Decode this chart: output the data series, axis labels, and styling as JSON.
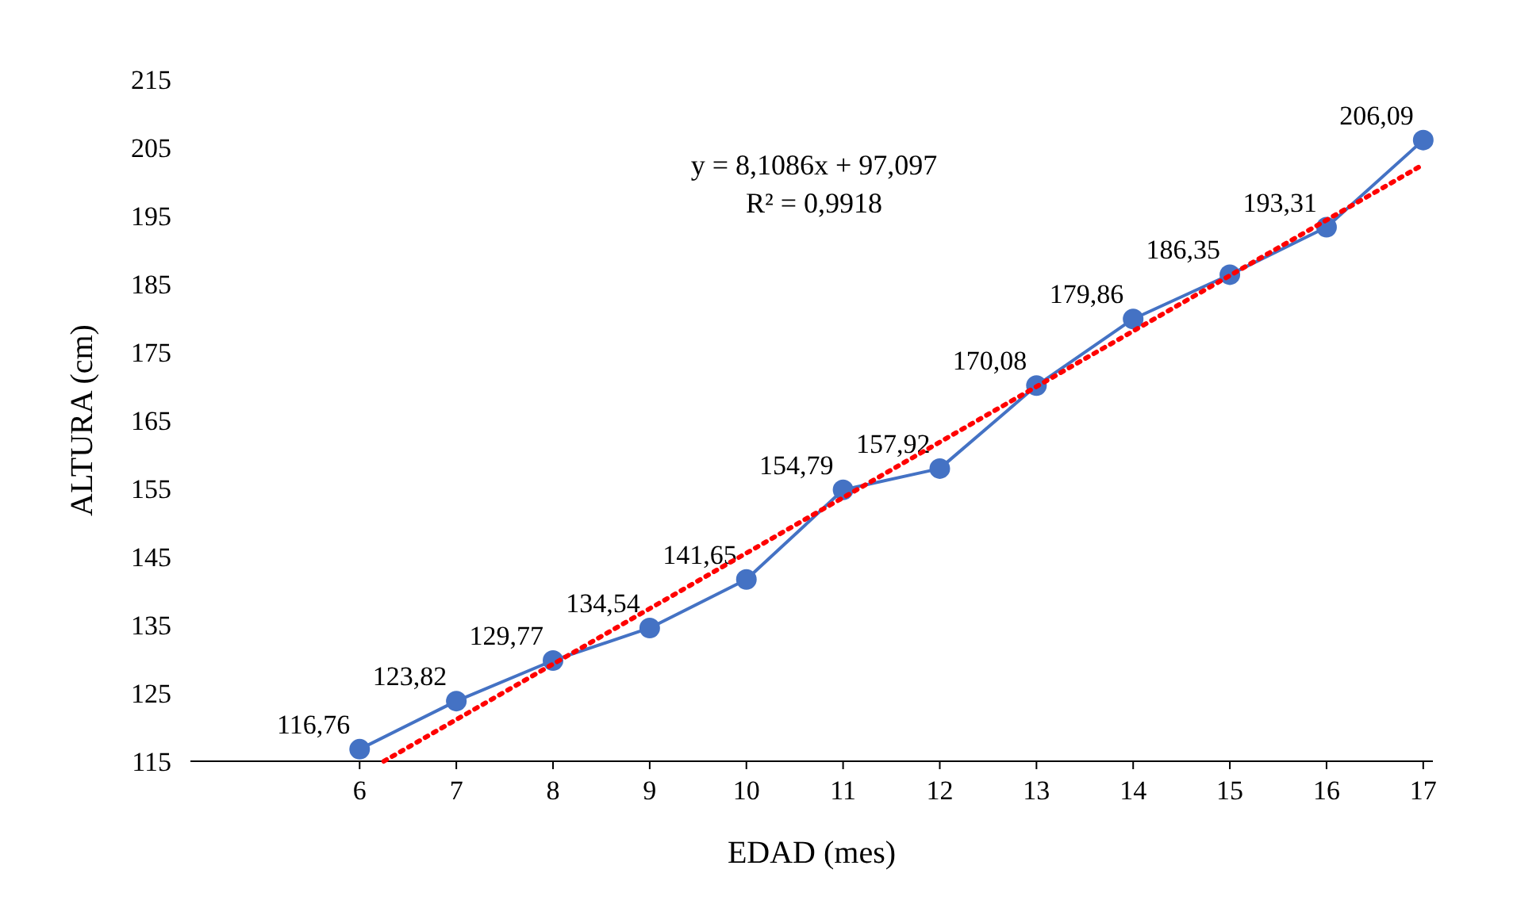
{
  "chart_data": {
    "type": "line",
    "xlabel": "EDAD (mes)",
    "ylabel": "ALTURA  (cm)",
    "x": [
      6,
      7,
      8,
      9,
      10,
      11,
      12,
      13,
      14,
      15,
      16,
      17
    ],
    "xlim": [
      4.25,
      17.1
    ],
    "xticks": [
      6,
      7,
      8,
      9,
      10,
      11,
      12,
      13,
      14,
      15,
      16,
      17
    ],
    "ylim": [
      115,
      215
    ],
    "yticks": [
      115,
      125,
      135,
      145,
      155,
      165,
      175,
      185,
      195,
      205,
      215
    ],
    "grid": false,
    "series": [
      {
        "color": "#4472c4",
        "marker": "circle",
        "line_style": "solid",
        "values": [
          116.76,
          123.82,
          129.77,
          134.54,
          141.65,
          154.79,
          157.92,
          170.08,
          179.86,
          186.35,
          193.31,
          206.09
        ],
        "value_labels": [
          "116,76",
          "123,82",
          "129,77",
          "134,54",
          "141,65",
          "154,79",
          "157,92",
          "170,08",
          "179,86",
          "186,35",
          "193,31",
          "206,09"
        ]
      },
      {
        "color": "#ff0000",
        "marker": "none",
        "line_style": "dotted",
        "x": [
          6.25,
          17
        ],
        "values": [
          115,
          202.5
        ]
      }
    ],
    "annotations": [
      "y = 8,1086x + 97,097",
      "R² = 0,9918"
    ]
  }
}
